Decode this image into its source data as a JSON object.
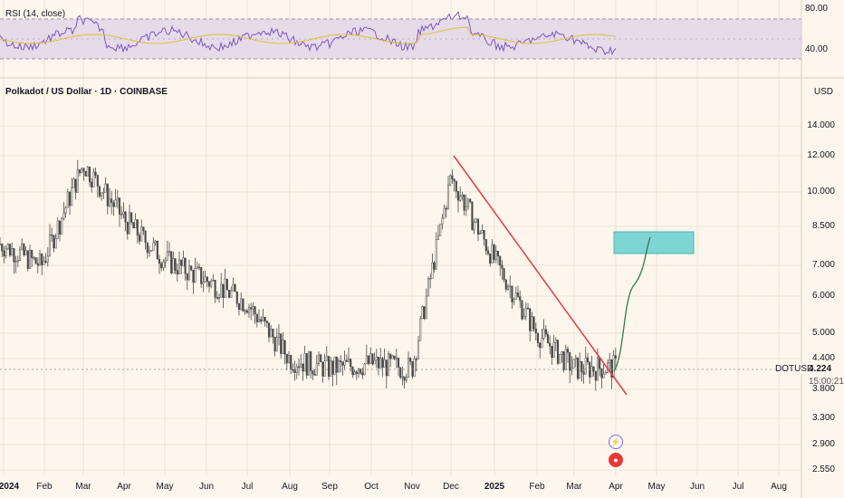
{
  "rsi": {
    "title": "RSI (14, close)",
    "levels": [
      "80.00",
      "40.00"
    ]
  },
  "header": {
    "title": "Polkadot / US Dollar · 1D · COINBASE",
    "currency": "USD"
  },
  "price_axis": [
    "14.000",
    "12.000",
    "10.000",
    "8.500",
    "7.000",
    "6.000",
    "5.000",
    "4.400",
    "3.800",
    "3.300",
    "2.900",
    "2.550"
  ],
  "time_axis": [
    {
      "label": "2024",
      "bold": true
    },
    {
      "label": "Feb",
      "bold": false
    },
    {
      "label": "Mar",
      "bold": false
    },
    {
      "label": "Apr",
      "bold": false
    },
    {
      "label": "May",
      "bold": false
    },
    {
      "label": "Jun",
      "bold": false
    },
    {
      "label": "Jul",
      "bold": false
    },
    {
      "label": "Aug",
      "bold": false
    },
    {
      "label": "Sep",
      "bold": false
    },
    {
      "label": "Oct",
      "bold": false
    },
    {
      "label": "Nov",
      "bold": false
    },
    {
      "label": "Dec",
      "bold": false
    },
    {
      "label": "2025",
      "bold": true
    },
    {
      "label": "Feb",
      "bold": false
    },
    {
      "label": "Mar",
      "bold": false
    },
    {
      "label": "Apr",
      "bold": false
    },
    {
      "label": "May",
      "bold": false
    },
    {
      "label": "Jun",
      "bold": false
    },
    {
      "label": "Jul",
      "bold": false
    },
    {
      "label": "Aug",
      "bold": false
    }
  ],
  "ticker": {
    "symbol": "DOTUSD",
    "last_price": "4.224",
    "countdown": "15:00:21"
  },
  "colors": {
    "background": "#fdf6ec",
    "trendline": "#e53945",
    "projection": "#2e7d4f",
    "target_zone": "#7fd4d4",
    "rsi_line": "#7e57c2",
    "rsi_ma": "#e0c040",
    "rsi_band": "#e6dbe8"
  },
  "chart_data": {
    "type": "candlestick",
    "title": "Polkadot / US Dollar · 1D · COINBASE",
    "price_scale": "log",
    "y_ticks": [
      14.0,
      12.0,
      10.0,
      8.5,
      7.0,
      6.0,
      5.0,
      4.4,
      3.8,
      3.3,
      2.9,
      2.55
    ],
    "close_path": [
      {
        "x": "2024-01",
        "close": 7.8
      },
      {
        "x": "2024-02",
        "close": 7.0
      },
      {
        "x": "2024-03",
        "close": 11.5
      },
      {
        "x": "2024-04",
        "close": 8.8
      },
      {
        "x": "2024-05",
        "close": 7.2
      },
      {
        "x": "2024-06",
        "close": 6.5
      },
      {
        "x": "2024-07",
        "close": 5.8
      },
      {
        "x": "2024-08",
        "close": 4.4
      },
      {
        "x": "2024-09",
        "close": 4.2
      },
      {
        "x": "2024-10",
        "close": 4.3
      },
      {
        "x": "2024-11",
        "close": 4.2
      },
      {
        "x": "2024-12",
        "close": 10.8
      },
      {
        "x": "2025-01",
        "close": 7.2
      },
      {
        "x": "2025-02",
        "close": 5.0
      },
      {
        "x": "2025-03",
        "close": 4.2
      },
      {
        "x": "2025-04",
        "close": 4.224
      }
    ],
    "trendline": {
      "from": {
        "x": "2024-12-04",
        "y": 11.8
      },
      "to": {
        "x": "2025-04-10",
        "y": 3.8
      }
    },
    "target_zone": {
      "y_low": 7.6,
      "y_high": 8.4
    },
    "last_price": 4.224
  }
}
